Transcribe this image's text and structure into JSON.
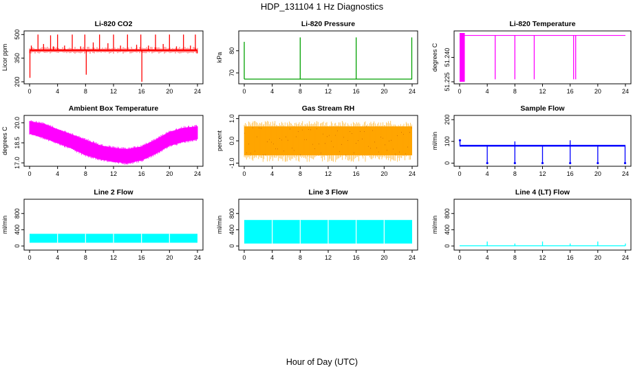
{
  "figure": {
    "title": "HDP_131104  1 Hz Diagnostics",
    "xlabel": "Hour of Day (UTC)"
  },
  "chart_data": [
    {
      "type": "line",
      "title": "Li-820 CO2",
      "ylabel": "Licor ppm",
      "color": "#ff0000",
      "xlim": [
        0,
        24
      ],
      "ylim": [
        200,
        510
      ],
      "xticks": [
        0,
        4,
        8,
        12,
        16,
        20,
        24
      ],
      "yticks": [
        200,
        350,
        500
      ],
      "ytick_labels": [
        "200",
        "350",
        "500"
      ],
      "baseline": 400,
      "spikes": [
        {
          "x": 0.05,
          "y": 225
        },
        {
          "x": 0.25,
          "y": 430
        },
        {
          "x": 1.2,
          "y": 500
        },
        {
          "x": 2.0,
          "y": 440
        },
        {
          "x": 3.0,
          "y": 495
        },
        {
          "x": 3.4,
          "y": 425
        },
        {
          "x": 4.0,
          "y": 500
        },
        {
          "x": 5.0,
          "y": 430
        },
        {
          "x": 6.1,
          "y": 500
        },
        {
          "x": 7.3,
          "y": 425
        },
        {
          "x": 7.9,
          "y": 500
        },
        {
          "x": 8.1,
          "y": 245
        },
        {
          "x": 9.1,
          "y": 450
        },
        {
          "x": 10.0,
          "y": 500
        },
        {
          "x": 11.2,
          "y": 445
        },
        {
          "x": 12.0,
          "y": 500
        },
        {
          "x": 13.0,
          "y": 430
        },
        {
          "x": 14.0,
          "y": 500
        },
        {
          "x": 15.3,
          "y": 435
        },
        {
          "x": 15.9,
          "y": 500
        },
        {
          "x": 16.05,
          "y": 200
        },
        {
          "x": 17.0,
          "y": 430
        },
        {
          "x": 18.0,
          "y": 500
        },
        {
          "x": 19.1,
          "y": 440
        },
        {
          "x": 20.0,
          "y": 500
        },
        {
          "x": 21.0,
          "y": 425
        },
        {
          "x": 22.0,
          "y": 500
        },
        {
          "x": 23.0,
          "y": 430
        },
        {
          "x": 23.7,
          "y": 500
        },
        {
          "x": 23.95,
          "y": 380
        }
      ]
    },
    {
      "type": "line",
      "title": "Li-820 Pressure",
      "ylabel": "kPa",
      "color": "#00a000",
      "xlim": [
        0,
        24
      ],
      "ylim": [
        66,
        88
      ],
      "xticks": [
        0,
        4,
        8,
        12,
        16,
        20,
        24
      ],
      "yticks": [
        70,
        80
      ],
      "ytick_labels": [
        "70",
        "80"
      ],
      "baseline": 67.2,
      "spikes": [
        {
          "x": 0.0,
          "y": 84
        },
        {
          "x": 8.0,
          "y": 86
        },
        {
          "x": 16.0,
          "y": 86
        },
        {
          "x": 23.95,
          "y": 86
        }
      ]
    },
    {
      "type": "line",
      "title": "Li-820 Temperature",
      "ylabel": "degrees C",
      "color": "#ff00ff",
      "xlim": [
        0,
        24
      ],
      "ylim": [
        51.225,
        51.255
      ],
      "xticks": [
        0,
        4,
        8,
        12,
        16,
        20,
        24
      ],
      "yticks": [
        51.225,
        51.24
      ],
      "ytick_labels": [
        "51.225",
        "51.240"
      ],
      "baseline": 51.2535,
      "block": [
        0,
        0.75
      ],
      "spikes": [
        {
          "x": 5.15,
          "y": 51.2265
        },
        {
          "x": 8.0,
          "y": 51.2265
        },
        {
          "x": 10.8,
          "y": 51.2265
        },
        {
          "x": 16.5,
          "y": 51.2265
        },
        {
          "x": 16.8,
          "y": 51.2265
        }
      ]
    },
    {
      "type": "area",
      "title": "Ambient Box Temperature",
      "ylabel": "degrees C",
      "color": "#ff00ff",
      "xlim": [
        0,
        24
      ],
      "ylim": [
        16.9,
        20.4
      ],
      "xticks": [
        0,
        4,
        8,
        12,
        16,
        20,
        24
      ],
      "yticks": [
        17.0,
        18.5,
        20.0
      ],
      "ytick_labels": [
        "17.0",
        "18.5",
        "20.0"
      ],
      "x": [
        0,
        2,
        4,
        6,
        8,
        10,
        12,
        14,
        16,
        18,
        20,
        22,
        24
      ],
      "upper": [
        20.1,
        19.9,
        19.5,
        19.1,
        18.7,
        18.3,
        18.1,
        18.0,
        18.2,
        18.7,
        19.3,
        19.6,
        19.7
      ],
      "lower": [
        19.2,
        18.9,
        18.5,
        18.1,
        17.6,
        17.3,
        17.1,
        17.0,
        17.2,
        17.7,
        18.3,
        18.6,
        18.8
      ]
    },
    {
      "type": "area",
      "title": "Gas Stream RH",
      "ylabel": "percent",
      "color": "#ffa500",
      "xlim": [
        0,
        24
      ],
      "ylim": [
        -1.05,
        1.05
      ],
      "xticks": [
        0,
        4,
        8,
        12,
        16,
        20,
        24
      ],
      "yticks": [
        -1.0,
        0.0,
        1.0
      ],
      "ytick_labels": [
        "-1.0",
        "0.0",
        "1.0"
      ],
      "upper_value": 0.65,
      "lower_value": -0.65,
      "outlier_max": 0.9,
      "outlier_min": -0.95
    },
    {
      "type": "line",
      "title": "Sample Flow",
      "ylabel": "ml/min",
      "color": "#0000ff",
      "xlim": [
        0,
        24
      ],
      "ylim": [
        -5,
        210
      ],
      "xticks": [
        0,
        4,
        8,
        12,
        16,
        20,
        24
      ],
      "yticks": [
        0,
        100,
        200
      ],
      "ytick_labels": [
        "0",
        "100",
        "200"
      ],
      "baseline": 80,
      "spikes": [
        {
          "x": 0.05,
          "y": 105
        },
        {
          "x": 4.0,
          "y": 0
        },
        {
          "x": 8.0,
          "y": 0
        },
        {
          "x": 12.0,
          "y": 0
        },
        {
          "x": 16.0,
          "y": 0
        },
        {
          "x": 20.0,
          "y": 0
        },
        {
          "x": 23.95,
          "y": 0
        }
      ],
      "up_spikes": [
        {
          "x": 8.0,
          "y": 100
        },
        {
          "x": 16.0,
          "y": 105
        }
      ]
    },
    {
      "type": "area",
      "title": "Line 2 Flow",
      "ylabel": "ml/min",
      "color": "#00ffff",
      "xlim": [
        0,
        24
      ],
      "ylim": [
        -50,
        1100
      ],
      "xticks": [
        0,
        4,
        8,
        12,
        16,
        20,
        24
      ],
      "yticks": [
        0,
        400,
        800
      ],
      "ytick_labels": [
        "0",
        "400",
        "800"
      ],
      "upper_value": 300,
      "lower_value": 80,
      "gaps": [
        4,
        8,
        12,
        16,
        20
      ]
    },
    {
      "type": "area",
      "title": "Line 3 Flow",
      "ylabel": "ml/min",
      "color": "#00ffff",
      "xlim": [
        0,
        24
      ],
      "ylim": [
        -50,
        1100
      ],
      "xticks": [
        0,
        4,
        8,
        12,
        16,
        20,
        24
      ],
      "yticks": [
        0,
        400,
        800
      ],
      "ytick_labels": [
        "0",
        "400",
        "800"
      ],
      "upper_value": 640,
      "lower_value": 60,
      "gaps": [
        4,
        8,
        12,
        16,
        20
      ]
    },
    {
      "type": "line",
      "title": "Line 4 (LT) Flow",
      "ylabel": "ml/min",
      "color": "#00ffff",
      "xlim": [
        0,
        24
      ],
      "ylim": [
        -50,
        1100
      ],
      "xticks": [
        0,
        4,
        8,
        12,
        16,
        20,
        24
      ],
      "yticks": [
        0,
        400,
        800
      ],
      "ytick_labels": [
        "0",
        "400",
        "800"
      ],
      "baseline": 5,
      "spikes": [
        {
          "x": 4.0,
          "y": 110
        },
        {
          "x": 8.0,
          "y": 60
        },
        {
          "x": 12.0,
          "y": 110
        },
        {
          "x": 16.0,
          "y": 60
        },
        {
          "x": 20.0,
          "y": 110
        },
        {
          "x": 24.0,
          "y": 60
        }
      ]
    }
  ]
}
